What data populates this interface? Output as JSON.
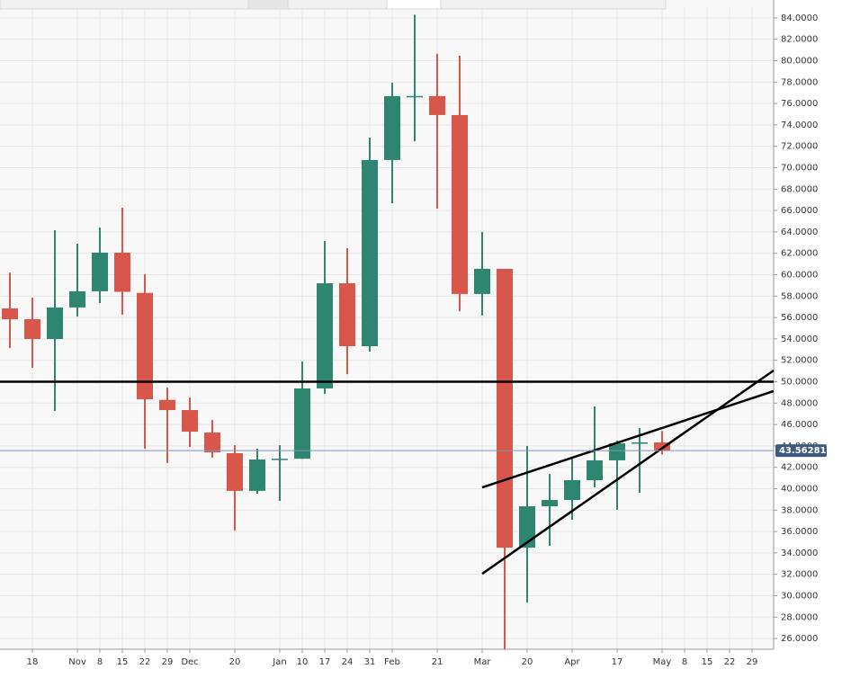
{
  "chart_data": {
    "type": "candlestick",
    "categories": [
      null,
      "18",
      null,
      "Nov",
      "8",
      "15",
      "22",
      "29",
      "Dec",
      null,
      "20",
      null,
      "Jan",
      "10",
      "17",
      "24",
      "31",
      "Feb",
      null,
      "21",
      null,
      "Mar",
      null,
      "20",
      null,
      "Apr",
      null,
      "17",
      null,
      "May",
      "8",
      "15",
      "22",
      "29"
    ],
    "open": [
      56.85,
      55.84,
      53.99,
      56.94,
      58.45,
      62.06,
      58.3,
      48.3,
      47.35,
      45.25,
      43.32,
      39.8,
      42.73,
      42.8,
      49.37,
      59.2,
      53.32,
      70.72,
      76.69,
      76.69,
      74.92,
      58.2,
      60.55,
      34.49,
      38.36,
      38.95,
      40.8,
      42.65,
      44.24,
      44.33,
      null,
      null,
      null,
      null
    ],
    "high": [
      60.2,
      57.86,
      64.16,
      62.9,
      64.4,
      66.26,
      60.04,
      49.45,
      48.53,
      46.43,
      44.07,
      43.74,
      44.07,
      51.9,
      63.15,
      62.48,
      72.82,
      77.95,
      84.3,
      80.64,
      80.47,
      64.0,
      60.55,
      43.99,
      41.38,
      42.98,
      47.69,
      44.5,
      45.67,
      45.4,
      null,
      null,
      null,
      null
    ],
    "low": [
      53.15,
      51.3,
      47.27,
      56.1,
      57.35,
      56.26,
      43.74,
      42.4,
      43.9,
      42.9,
      36.09,
      39.54,
      38.86,
      42.8,
      48.86,
      50.7,
      52.82,
      66.68,
      72.48,
      66.18,
      56.6,
      56.18,
      25.0,
      29.36,
      34.66,
      37.1,
      40.12,
      38.02,
      39.62,
      43.2,
      null,
      null,
      null,
      null
    ],
    "close": [
      55.84,
      53.99,
      56.94,
      58.45,
      62.06,
      58.4,
      48.36,
      47.35,
      45.33,
      43.4,
      39.8,
      42.73,
      42.8,
      49.37,
      59.2,
      53.32,
      70.72,
      76.69,
      76.7,
      74.92,
      58.2,
      60.55,
      34.49,
      38.36,
      38.95,
      40.8,
      42.65,
      44.24,
      44.33,
      43.56,
      null,
      null,
      null,
      null
    ],
    "up_color": "#2e8670",
    "down_color": "#d9574a",
    "ylim": [
      25,
      85
    ],
    "yticks": [
      {
        "value": 26,
        "label": "26.0000"
      },
      {
        "value": 28,
        "label": "28.0000"
      },
      {
        "value": 30,
        "label": "30.0000"
      },
      {
        "value": 32,
        "label": "32.0000"
      },
      {
        "value": 34,
        "label": "34.0000"
      },
      {
        "value": 36,
        "label": "36.0000"
      },
      {
        "value": 38,
        "label": "38.0000"
      },
      {
        "value": 40,
        "label": "40.0000"
      },
      {
        "value": 42,
        "label": "42.0000"
      },
      {
        "value": 44,
        "label": "44.0000"
      },
      {
        "value": 46,
        "label": "46.0000"
      },
      {
        "value": 48,
        "label": "48.0000"
      },
      {
        "value": 50,
        "label": "50.0000"
      },
      {
        "value": 52,
        "label": "52.0000"
      },
      {
        "value": 54,
        "label": "54.0000"
      },
      {
        "value": 56,
        "label": "56.0000"
      },
      {
        "value": 58,
        "label": "58.0000"
      },
      {
        "value": 60,
        "label": "60.0000"
      },
      {
        "value": 62,
        "label": "62.0000"
      },
      {
        "value": 64,
        "label": "64.0000"
      },
      {
        "value": 66,
        "label": "66.0000"
      },
      {
        "value": 68,
        "label": "68.0000"
      },
      {
        "value": 70,
        "label": "70.0000"
      },
      {
        "value": 72,
        "label": "72.0000"
      },
      {
        "value": 74,
        "label": "74.0000"
      },
      {
        "value": 76,
        "label": "76.0000"
      },
      {
        "value": 78,
        "label": "78.0000"
      },
      {
        "value": 80,
        "label": "80.0000"
      },
      {
        "value": 82,
        "label": "82.0000"
      },
      {
        "value": 84,
        "label": "84.0000"
      }
    ],
    "grid": true,
    "last_price": 43.562812,
    "last_price_color": "#3d5a80",
    "hline": 50,
    "trendlines": [
      {
        "from": [
          21,
          40.12
        ],
        "to": [
          33.96,
          49.12
        ]
      },
      {
        "from": [
          21,
          32.05
        ],
        "to": [
          33.96,
          51.05
        ]
      }
    ]
  }
}
